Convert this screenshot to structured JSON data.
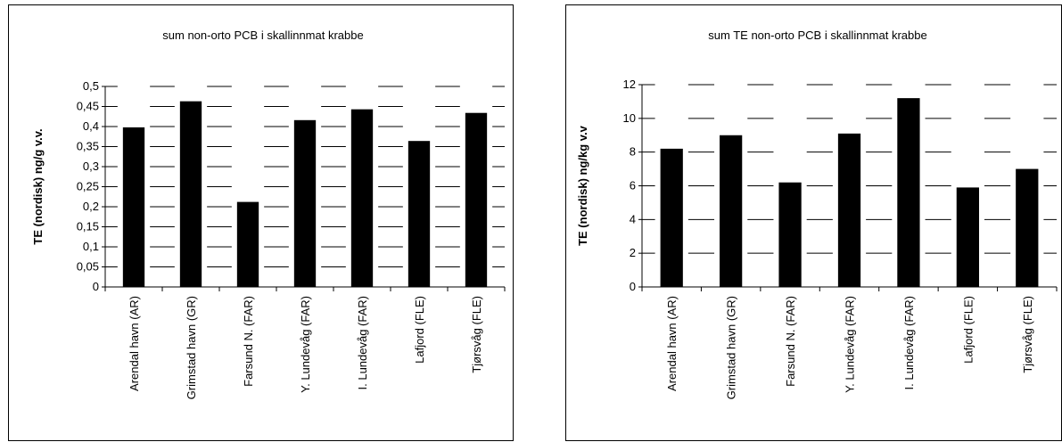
{
  "chart_data": [
    {
      "type": "bar",
      "title": "sum non-orto PCB i skallinnmat krabbe",
      "ylabel": "TE (nordisk) ng/g v.v.",
      "xlabel": "",
      "categories": [
        "Arendal havn (AR)",
        "Grimstad havn (GR)",
        "Farsund N. (FAR)",
        "Y. Lundevåg (FAR)",
        "I. Lundevåg (FAR)",
        "Lafjord (FLE)",
        "Tjørsvåg (FLE)"
      ],
      "values": [
        0.398,
        0.463,
        0.212,
        0.416,
        0.443,
        0.364,
        0.434
      ],
      "ylim": [
        0,
        0.5
      ],
      "yticks": [
        "0",
        "0,05",
        "0,1",
        "0,15",
        "0,2",
        "0,25",
        "0,3",
        "0,35",
        "0,4",
        "0,45",
        "0,5"
      ],
      "grid": true,
      "bar_color": "#000000"
    },
    {
      "type": "bar",
      "title": "sum TE non-orto PCB i skallinnmat krabbe",
      "ylabel": "TE (nordisk) ng/kg v.v",
      "xlabel": "",
      "categories": [
        "Arendal havn (AR)",
        "Grimstad havn (GR)",
        "Farsund N. (FAR)",
        "Y. Lundevåg (FAR)",
        "I. Lundevåg (FAR)",
        "Lafjord (FLE)",
        "Tjørsvåg (FLE)"
      ],
      "values": [
        8.2,
        9.0,
        6.2,
        9.1,
        11.2,
        5.9,
        7.0
      ],
      "ylim": [
        0,
        12
      ],
      "yticks": [
        "0",
        "2",
        "4",
        "6",
        "8",
        "10",
        "12"
      ],
      "grid": true,
      "bar_color": "#000000"
    }
  ]
}
